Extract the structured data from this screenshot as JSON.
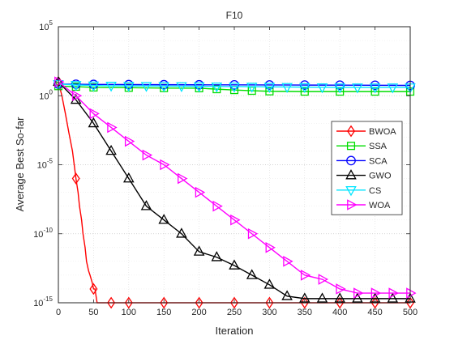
{
  "chart_data": {
    "type": "line",
    "title": "F10",
    "xlabel": "Iteration",
    "ylabel": "Average Best So-far",
    "y_scale": "log",
    "xlim": [
      0,
      500
    ],
    "ylim_exponents": [
      -15,
      5
    ],
    "x_ticks": [
      0,
      50,
      100,
      150,
      200,
      250,
      300,
      350,
      400,
      450,
      500
    ],
    "y_ticks": [
      {
        "base": "10",
        "exp": "5",
        "value": 100000
      },
      {
        "base": "10",
        "exp": "0",
        "value": 1
      },
      {
        "base": "10",
        "exp": "-5",
        "value": 1e-05
      },
      {
        "base": "10",
        "exp": "-10",
        "value": 1e-10
      },
      {
        "base": "10",
        "exp": "-15",
        "value": 1e-15
      }
    ],
    "grid": true,
    "legend_position": "right",
    "series": [
      {
        "name": "BWOA",
        "color": "#ff0000",
        "marker": "diamond",
        "x": [
          0,
          5,
          10,
          15,
          20,
          25,
          28,
          30,
          33,
          35,
          38,
          40,
          43,
          45,
          48,
          50,
          52,
          55,
          60,
          75,
          100,
          150,
          200,
          250,
          300,
          350,
          400,
          450,
          500
        ],
        "y": [
          10,
          1,
          0.05,
          0.002,
          0.0001,
          1e-06,
          1e-07,
          1e-08,
          1e-09,
          1e-10,
          1e-11,
          1e-12,
          2e-13,
          1e-13,
          3e-14,
          1e-14,
          1e-14,
          1e-15,
          1e-15,
          1e-15,
          1e-15,
          1e-15,
          1e-15,
          1e-15,
          1e-15,
          1e-15,
          1e-15,
          1e-15,
          1e-15
        ]
      },
      {
        "name": "SSA",
        "color": "#00dd00",
        "marker": "square",
        "x": [
          0,
          25,
          50,
          100,
          150,
          200,
          225,
          250,
          275,
          300,
          350,
          400,
          450,
          500
        ],
        "y": [
          5,
          4.5,
          4,
          3.8,
          3.6,
          3.5,
          3,
          2.6,
          2.3,
          2.1,
          2,
          2,
          2,
          2
        ]
      },
      {
        "name": "SCA",
        "color": "#0000ff",
        "marker": "circle",
        "x": [
          0,
          25,
          50,
          100,
          150,
          200,
          250,
          300,
          350,
          400,
          450,
          500
        ],
        "y": [
          7,
          6.8,
          6.6,
          6.4,
          6.3,
          6.2,
          6.1,
          6.0,
          5.9,
          5.8,
          5.7,
          5.6
        ]
      },
      {
        "name": "GWO",
        "color": "#000000",
        "marker": "triangle-up",
        "x": [
          0,
          25,
          50,
          75,
          100,
          125,
          150,
          175,
          200,
          225,
          250,
          275,
          300,
          325,
          350,
          375,
          400,
          425,
          450,
          475,
          500
        ],
        "y": [
          10,
          0.5,
          0.01,
          0.0001,
          1e-06,
          1e-08,
          1e-09,
          1e-10,
          5e-12,
          2e-12,
          5e-13,
          1e-13,
          2e-14,
          3e-15,
          2e-15,
          2e-15,
          2e-15,
          2e-15,
          2e-15,
          2e-15,
          2e-15
        ]
      },
      {
        "name": "CS",
        "color": "#00e5ff",
        "marker": "triangle-down",
        "x": [
          0,
          25,
          50,
          75,
          100,
          125,
          150,
          175,
          200,
          225,
          250,
          275,
          300,
          325,
          350,
          375,
          400,
          425,
          450,
          475,
          500
        ],
        "y": [
          7,
          6,
          5.5,
          5.3,
          5.2,
          5.1,
          5,
          4.9,
          4.8,
          4.7,
          4.6,
          4.5,
          4.4,
          4.3,
          4.2,
          4.1,
          4,
          4,
          4,
          4,
          4
        ]
      },
      {
        "name": "WOA",
        "color": "#ff00ff",
        "marker": "triangle-right",
        "x": [
          0,
          25,
          50,
          75,
          100,
          125,
          150,
          175,
          200,
          225,
          250,
          275,
          300,
          325,
          350,
          375,
          400,
          425,
          450,
          475,
          500
        ],
        "y": [
          10,
          1,
          0.05,
          0.005,
          0.0005,
          5e-05,
          1e-05,
          1e-06,
          1e-07,
          1e-08,
          1e-09,
          1e-10,
          1e-11,
          1e-12,
          1e-13,
          5e-14,
          1e-14,
          5e-15,
          5e-15,
          5e-15,
          5e-15
        ]
      }
    ]
  }
}
